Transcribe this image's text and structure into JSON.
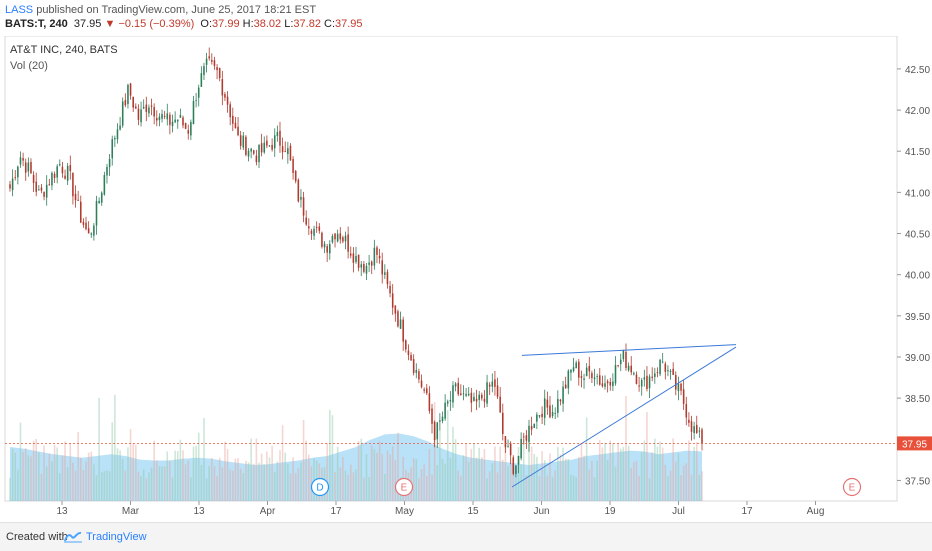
{
  "header": {
    "user": "LASS",
    "published_text": " published on TradingView.com, June 25, 2017 18:21 EST",
    "symbol": "BATS:T, 240",
    "last": "37.95",
    "down_arrow": "▼",
    "change": "−0.15 (−0.39%)",
    "o_label": "O:",
    "o_value": "37.99",
    "h_label": "H:",
    "h_value": "38.02",
    "l_label": "L:",
    "l_value": "37.82",
    "c_label": "C:",
    "c_value": "37.95"
  },
  "chart_title": "AT&T INC, 240, BATS",
  "volume_label": "Vol (20)",
  "price_tag": "37.95",
  "events": [
    {
      "label": "D",
      "x_date": "Apr 6",
      "color": "#2196f3"
    },
    {
      "label": "E",
      "x_date": "Apr 25",
      "color": "#e57373"
    },
    {
      "label": "E",
      "x_date": "Jul 25",
      "color": "#e57373"
    }
  ],
  "footer": {
    "created_with": "Created with",
    "brand": "TradingView"
  },
  "colors": {
    "up": "#2e7d5b",
    "down": "#b03a2e",
    "volume_area": "#80c8f0",
    "trendline": "#3a7ad8",
    "price_line": "#e8503a"
  },
  "chart_data": {
    "type": "candlestick",
    "title": "AT&T INC, 240, BATS",
    "y_axis": {
      "min": 37.25,
      "max": 42.9,
      "ticks": [
        "42.50",
        "42.00",
        "41.50",
        "41.00",
        "40.50",
        "40.00",
        "39.50",
        "39.00",
        "38.50",
        "38.00",
        "37.50"
      ]
    },
    "x_ticks": [
      "13",
      "Mar",
      "13",
      "Apr",
      "17",
      "May",
      "15",
      "Jun",
      "19",
      "Jul",
      "17",
      "Aug"
    ],
    "last_price": 37.95,
    "trendlines": [
      {
        "name": "upper",
        "from": 39.02,
        "to": 39.15
      },
      {
        "name": "lower",
        "from": 37.42,
        "to": 39.12
      }
    ],
    "close_path": [
      41.05,
      41.45,
      41.25,
      40.95,
      41.15,
      41.35,
      41.2,
      40.75,
      40.45,
      40.9,
      41.45,
      41.85,
      42.25,
      41.9,
      42.1,
      41.95,
      41.85,
      41.9,
      41.75,
      42.3,
      42.55,
      42.45,
      42.1,
      41.65,
      41.55,
      41.45,
      41.55,
      41.65,
      41.55,
      41.0,
      40.7,
      40.5,
      40.35,
      40.55,
      40.4,
      40.2,
      40.1,
      40.3,
      39.9,
      39.55,
      39.2,
      38.85,
      38.55,
      38.05,
      38.35,
      38.6,
      38.5,
      38.4,
      38.55,
      38.7,
      37.95,
      37.65,
      38.0,
      38.25,
      38.4,
      38.35,
      38.6,
      38.9,
      38.75,
      38.85,
      38.65,
      38.8,
      39.0,
      38.85,
      38.65,
      38.8,
      38.95,
      38.7,
      38.5,
      38.15,
      37.95
    ],
    "volume_area_path": [
      0.6,
      0.58,
      0.55,
      0.52,
      0.5,
      0.48,
      0.5,
      0.52,
      0.5,
      0.46,
      0.45,
      0.45,
      0.47,
      0.48,
      0.47,
      0.44,
      0.42,
      0.4,
      0.41,
      0.43,
      0.45,
      0.48,
      0.5,
      0.55,
      0.6,
      0.68,
      0.74,
      0.75,
      0.72,
      0.66,
      0.58,
      0.52,
      0.48,
      0.46,
      0.44,
      0.42,
      0.4,
      0.42,
      0.44,
      0.46,
      0.5,
      0.52,
      0.54,
      0.56,
      0.55,
      0.52,
      0.54,
      0.56,
      0.55
    ]
  }
}
